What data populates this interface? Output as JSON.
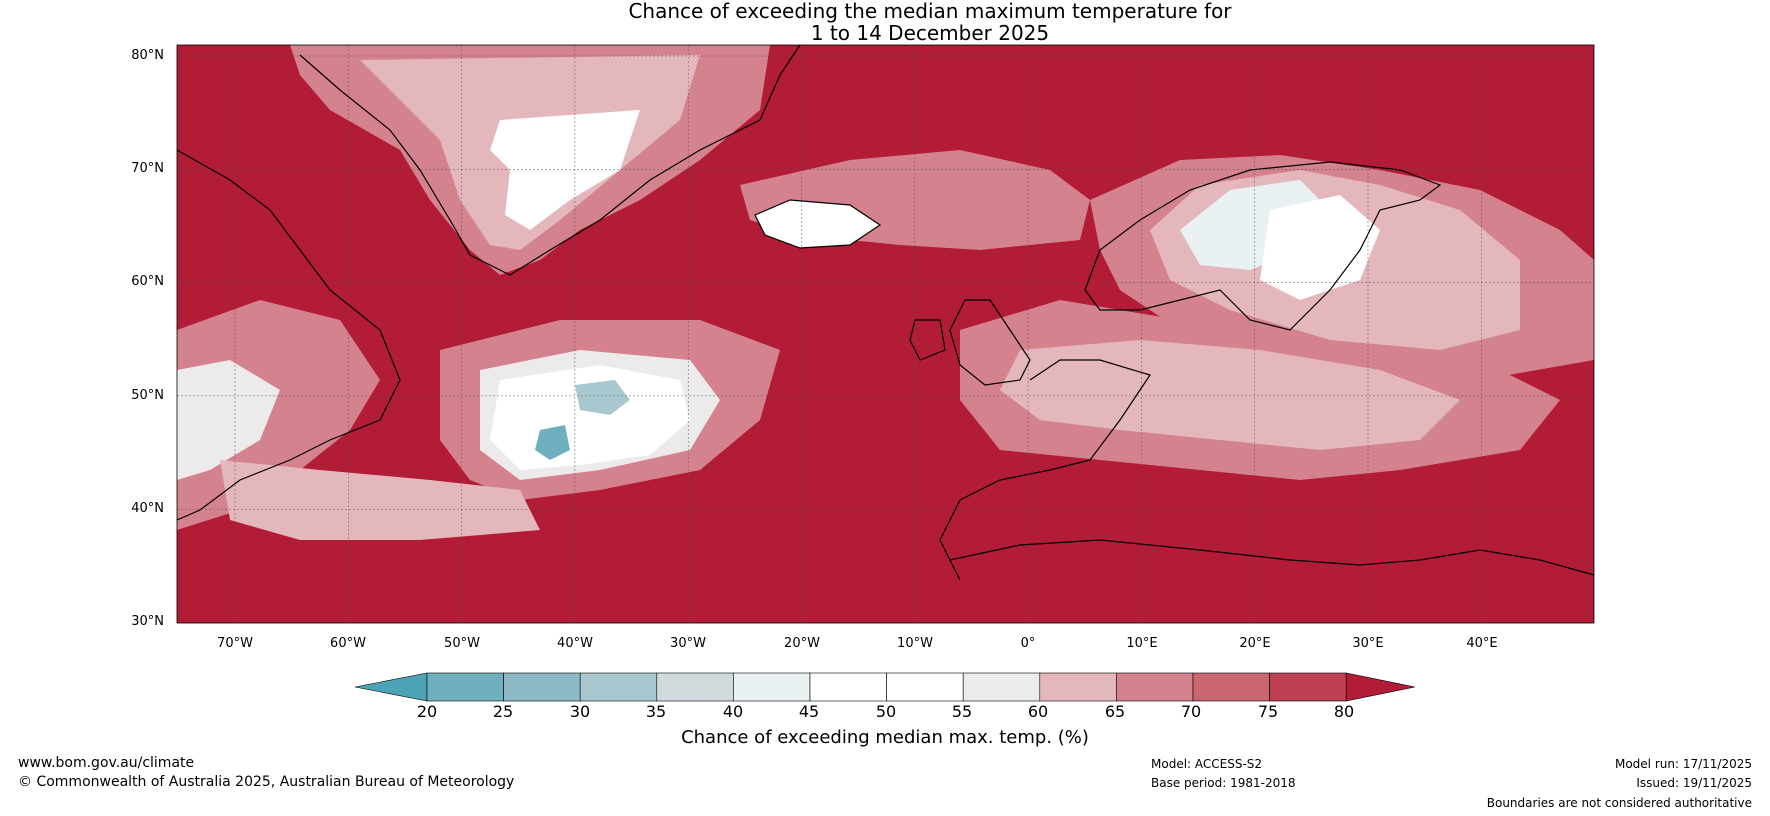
{
  "title": {
    "line1": "Chance of exceeding the median maximum temperature for",
    "line2": "1 to 14 December 2025"
  },
  "map": {
    "lat_labels": [
      "80°N",
      "70°N",
      "60°N",
      "50°N",
      "40°N",
      "30°N"
    ],
    "lon_labels": [
      "70°W",
      "60°W",
      "50°W",
      "40°W",
      "30°W",
      "20°W",
      "10°W",
      "0°",
      "10°E",
      "20°E",
      "30°E",
      "40°E"
    ],
    "colors": {
      "high": "#b21c37",
      "ocean_background": "#b21c37",
      "coastline": "#000000",
      "borders": "#7f7f7f"
    }
  },
  "colorbar": {
    "ticks": [
      "20",
      "25",
      "30",
      "35",
      "40",
      "45",
      "50",
      "55",
      "60",
      "65",
      "70",
      "75",
      "80"
    ],
    "label": "Chance of exceeding median max. temp. (%)",
    "colors": [
      "#4ba3b5",
      "#6fb0be",
      "#8cb9c5",
      "#a9c7cf",
      "#d1dadd",
      "#eaf1f3",
      "#ffffff",
      "#ffffff",
      "#eceaeb",
      "#e4b7bd",
      "#d5828f",
      "#c96670",
      "#be4052",
      "#b21c37"
    ]
  },
  "footer": {
    "website": "www.bom.gov.au/climate",
    "copyright": "© Commonwealth of Australia 2025, Australian Bureau of Meteorology",
    "model": "Model: ACCESS-S2",
    "base_period": "Base period: 1981-2018",
    "model_run": "Model run: 17/11/2025",
    "issued": "Issued: 19/11/2025",
    "disclaimer": "Boundaries are not considered authoritative"
  }
}
